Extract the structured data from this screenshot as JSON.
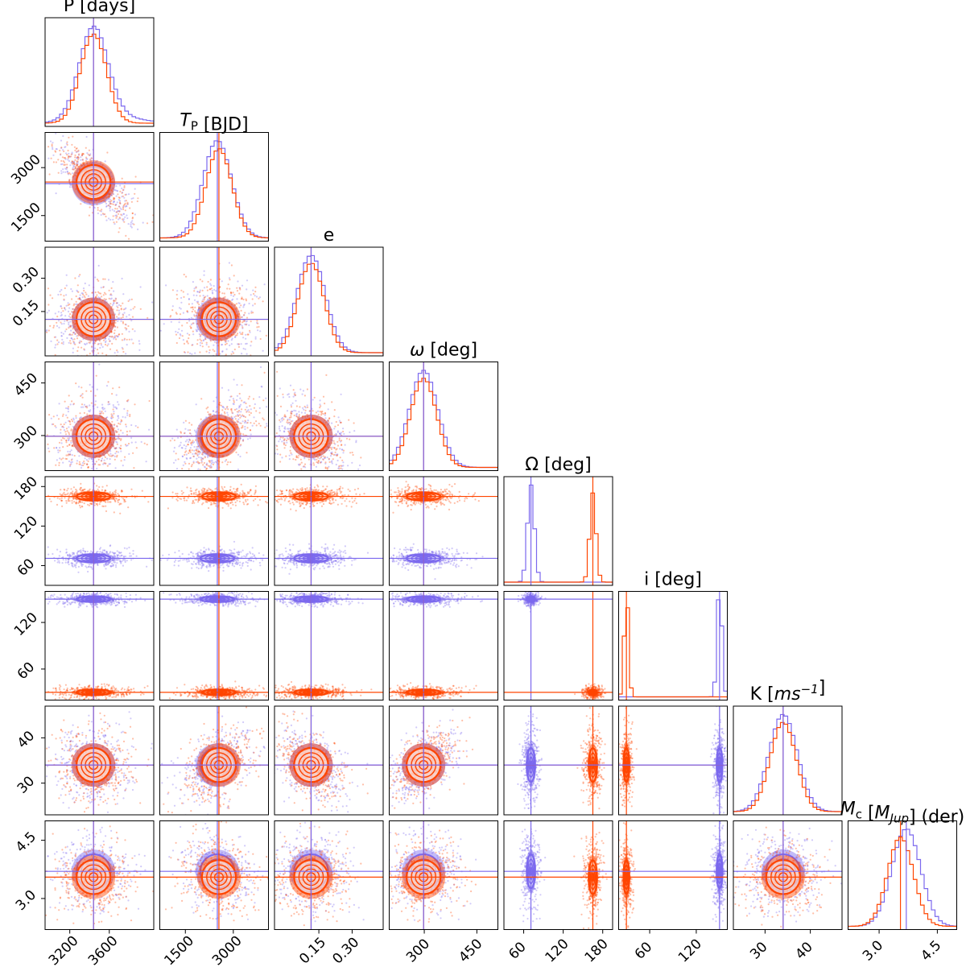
{
  "chart_data": {
    "type": "corner",
    "parameters": [
      {
        "key": "P",
        "title": "P [days]",
        "truth_orange": 3440,
        "truth_blue": 3440,
        "range": [
          2950,
          4050
        ]
      },
      {
        "key": "Tp",
        "title": "T_P [BJD]",
        "truth_orange": 2550,
        "truth_blue": 2500,
        "range": [
          700,
          4100
        ]
      },
      {
        "key": "e",
        "title": "e",
        "truth_orange": 0.115,
        "truth_blue": 0.115,
        "range": [
          -0.05,
          0.44
        ]
      },
      {
        "key": "omega",
        "title": "ω [deg]",
        "truth_orange": 298,
        "truth_blue": 298,
        "range": [
          200,
          510
        ]
      },
      {
        "key": "Omega",
        "title": "Ω [deg]",
        "truth_orange": 165,
        "truth_blue": 71,
        "range": [
          30,
          195
        ]
      },
      {
        "key": "i",
        "title": "i [deg]",
        "truth_orange": 30,
        "truth_blue": 150,
        "range": [
          20,
          160
        ]
      },
      {
        "key": "K",
        "title": "K [ms^-1]",
        "truth_orange": 34,
        "truth_blue": 34,
        "range": [
          23,
          47
        ]
      },
      {
        "key": "Mc",
        "title": "M_c [M_Jup] (der)",
        "truth_orange": 3.55,
        "truth_blue": 3.7,
        "range": [
          2.2,
          5.0
        ]
      }
    ],
    "tick_labels": {
      "P": [
        "3200",
        "3600"
      ],
      "Tp": [
        "1500",
        "3000"
      ],
      "e": [
        "0.15",
        "0.30"
      ],
      "omega": [
        "300",
        "450"
      ],
      "Omega": [
        "60",
        "120",
        "180"
      ],
      "i": [
        "60",
        "120"
      ],
      "K": [
        "30",
        "40"
      ],
      "Mc": [
        "3.0",
        "4.5"
      ]
    },
    "series": [
      {
        "name": "",
        "color": "#ff4500"
      },
      {
        "name": "",
        "color": "#7b68ee"
      }
    ],
    "modes": {
      "Omega": {
        "orange": 165,
        "blue": 71
      },
      "i": {
        "orange": 30,
        "blue": 150
      }
    },
    "grid": false,
    "legend": "none"
  }
}
